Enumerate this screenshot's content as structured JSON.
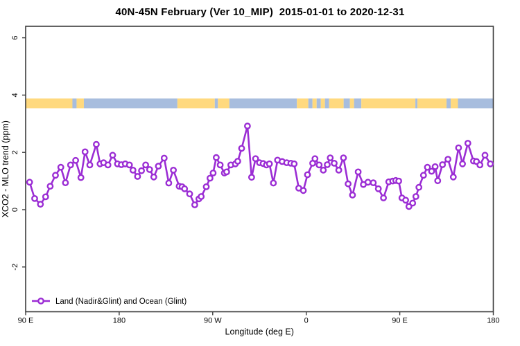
{
  "header": {
    "title": "40N-45N February (Ver 10_MIP)  2015-01-01 to 2020-12-31"
  },
  "chart_data": {
    "type": "line",
    "title": "40N-45N February (Ver 10_MIP)  2015-01-01 to 2020-12-31",
    "xlabel": "Longitude (deg E)",
    "ylabel": "XCO2 - MLO trend (ppm)",
    "xlim": [
      90,
      540
    ],
    "ylim": [
      -3.55,
      6.4
    ],
    "grid": false,
    "x_ticks": [
      {
        "value": 90,
        "label": "90 E"
      },
      {
        "value": 180,
        "label": "180"
      },
      {
        "value": 270,
        "label": "90 W"
      },
      {
        "value": 360,
        "label": "0"
      },
      {
        "value": 450,
        "label": "90 E"
      },
      {
        "value": 540,
        "label": "180"
      }
    ],
    "y_ticks": [
      {
        "value": -2,
        "label": "-2"
      },
      {
        "value": 0,
        "label": "0"
      },
      {
        "value": 2,
        "label": "2"
      },
      {
        "value": 4,
        "label": "4"
      },
      {
        "value": 6,
        "label": "6"
      }
    ],
    "legend": {
      "label": "Land (Nadir&Glint) and Ocean (Glint)",
      "position": "bottom-left"
    },
    "colors": {
      "series": "#9B2DD4",
      "marker_fill": "#FFFFFF",
      "land": "#FFD97E",
      "ocean": "#A7BDDE",
      "frame": "#3C3C3C",
      "text": "#000000"
    },
    "map_band": {
      "description": "land/ocean strip for 40N-45N",
      "y_range": [
        3.54,
        3.88
      ],
      "segments": [
        {
          "from": 90,
          "to": 135,
          "surface": "land"
        },
        {
          "from": 135,
          "to": 139,
          "surface": "ocean"
        },
        {
          "from": 139,
          "to": 146,
          "surface": "land"
        },
        {
          "from": 146,
          "to": 236,
          "surface": "ocean"
        },
        {
          "from": 236,
          "to": 272,
          "surface": "land"
        },
        {
          "from": 272,
          "to": 275,
          "surface": "ocean"
        },
        {
          "from": 275,
          "to": 286,
          "surface": "land"
        },
        {
          "from": 286,
          "to": 351,
          "surface": "ocean"
        },
        {
          "from": 351,
          "to": 362,
          "surface": "land"
        },
        {
          "from": 362,
          "to": 366,
          "surface": "ocean"
        },
        {
          "from": 366,
          "to": 370,
          "surface": "land"
        },
        {
          "from": 370,
          "to": 374,
          "surface": "ocean"
        },
        {
          "from": 374,
          "to": 378,
          "surface": "land"
        },
        {
          "from": 378,
          "to": 382,
          "surface": "ocean"
        },
        {
          "from": 382,
          "to": 396,
          "surface": "land"
        },
        {
          "from": 396,
          "to": 402,
          "surface": "ocean"
        },
        {
          "from": 402,
          "to": 406,
          "surface": "land"
        },
        {
          "from": 406,
          "to": 413,
          "surface": "ocean"
        },
        {
          "from": 413,
          "to": 465,
          "surface": "land"
        },
        {
          "from": 465,
          "to": 467,
          "surface": "ocean"
        },
        {
          "from": 467,
          "to": 495,
          "surface": "land"
        },
        {
          "from": 495,
          "to": 499,
          "surface": "ocean"
        },
        {
          "from": 499,
          "to": 506,
          "surface": "land"
        },
        {
          "from": 506,
          "to": 540,
          "surface": "ocean"
        }
      ]
    },
    "series": [
      {
        "name": "Land (Nadir&Glint) and Ocean (Glint)",
        "points": [
          [
            93.8,
            0.96
          ],
          [
            98.7,
            0.39
          ],
          [
            104.2,
            0.19
          ],
          [
            109.2,
            0.45
          ],
          [
            113.6,
            0.82
          ],
          [
            118.7,
            1.2
          ],
          [
            123.8,
            1.48
          ],
          [
            128.3,
            0.94
          ],
          [
            133.2,
            1.56
          ],
          [
            138.1,
            1.72
          ],
          [
            143.2,
            1.12
          ],
          [
            147.2,
            2.02
          ],
          [
            151.7,
            1.56
          ],
          [
            158,
            2.28
          ],
          [
            161.6,
            1.6
          ],
          [
            165,
            1.64
          ],
          [
            169.2,
            1.56
          ],
          [
            173.7,
            1.9
          ],
          [
            178.3,
            1.6
          ],
          [
            182.1,
            1.57
          ],
          [
            185.9,
            1.6
          ],
          [
            189.9,
            1.56
          ],
          [
            193.3,
            1.38
          ],
          [
            197.7,
            1.16
          ],
          [
            201.5,
            1.36
          ],
          [
            205.5,
            1.56
          ],
          [
            209.3,
            1.4
          ],
          [
            213.3,
            1.14
          ],
          [
            217.7,
            1.52
          ],
          [
            223.3,
            1.8
          ],
          [
            227.7,
            0.93
          ],
          [
            232.2,
            1.38
          ],
          [
            237.7,
            0.82
          ],
          [
            240.5,
            0.8
          ],
          [
            242.9,
            0.73
          ],
          [
            247.8,
            0.55
          ],
          [
            252.7,
            0.17
          ],
          [
            256.7,
            0.38
          ],
          [
            258.9,
            0.46
          ],
          [
            263.8,
            0.8
          ],
          [
            267.4,
            1.1
          ],
          [
            270.4,
            1.28
          ],
          [
            273.4,
            1.82
          ],
          [
            277.2,
            1.56
          ],
          [
            281.2,
            1.28
          ],
          [
            283.4,
            1.32
          ],
          [
            287.4,
            1.56
          ],
          [
            291.8,
            1.6
          ],
          [
            294.1,
            1.69
          ],
          [
            297.8,
            2.14
          ],
          [
            303.4,
            2.92
          ],
          [
            307.4,
            1.13
          ],
          [
            311.2,
            1.78
          ],
          [
            315,
            1.64
          ],
          [
            318.5,
            1.61
          ],
          [
            321.7,
            1.56
          ],
          [
            324.6,
            1.6
          ],
          [
            328.4,
            0.93
          ],
          [
            332.4,
            1.73
          ],
          [
            336.8,
            1.68
          ],
          [
            341.2,
            1.64
          ],
          [
            345.2,
            1.62
          ],
          [
            348.4,
            1.6
          ],
          [
            352.8,
            0.75
          ],
          [
            357.2,
            0.67
          ],
          [
            361.2,
            1.22
          ],
          [
            366.2,
            1.62
          ],
          [
            368.4,
            1.78
          ],
          [
            372.4,
            1.56
          ],
          [
            376.4,
            1.38
          ],
          [
            380.2,
            1.57
          ],
          [
            383.1,
            1.81
          ],
          [
            386.9,
            1.62
          ],
          [
            391.3,
            1.38
          ],
          [
            395.8,
            1.81
          ],
          [
            400.3,
            0.9
          ],
          [
            404.5,
            0.51
          ],
          [
            410,
            1.32
          ],
          [
            415,
            0.88
          ],
          [
            419.4,
            0.96
          ],
          [
            424.5,
            0.94
          ],
          [
            429.4,
            0.73
          ],
          [
            434.3,
            0.41
          ],
          [
            439.4,
            0.97
          ],
          [
            443.2,
            1.0
          ],
          [
            446.1,
            1.02
          ],
          [
            449,
            1.0
          ],
          [
            452.1,
            0.41
          ],
          [
            455.7,
            0.33
          ],
          [
            458.8,
            0.11
          ],
          [
            462.4,
            0.23
          ],
          [
            465.5,
            0.46
          ],
          [
            468.4,
            0.78
          ],
          [
            472.8,
            1.2
          ],
          [
            476.6,
            1.48
          ],
          [
            480.6,
            1.34
          ],
          [
            484,
            1.5
          ],
          [
            486.5,
            1.01
          ],
          [
            491.1,
            1.57
          ],
          [
            496.4,
            1.76
          ],
          [
            501.5,
            1.14
          ],
          [
            506.6,
            2.16
          ],
          [
            510.4,
            1.6
          ],
          [
            515.5,
            2.32
          ],
          [
            520.9,
            1.7
          ],
          [
            523.8,
            1.68
          ],
          [
            527.1,
            1.56
          ],
          [
            532,
            1.9
          ],
          [
            537.1,
            1.6
          ]
        ]
      }
    ]
  }
}
